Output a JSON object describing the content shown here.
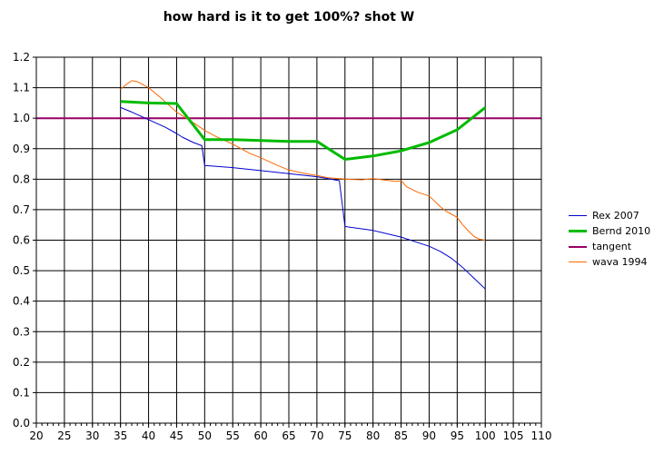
{
  "chart_data": {
    "type": "line",
    "title": "how hard is it to get 100%? shot W",
    "xlabel": "",
    "ylabel": "",
    "xlim": [
      20,
      110
    ],
    "ylim": [
      0.0,
      1.2
    ],
    "x_ticks": [
      "20",
      "25",
      "30",
      "35",
      "40",
      "45",
      "50",
      "55",
      "60",
      "65",
      "70",
      "75",
      "80",
      "85",
      "90",
      "95",
      "100",
      "105",
      "110"
    ],
    "y_ticks": [
      "0.0",
      "0.1",
      "0.2",
      "0.3",
      "0.4",
      "0.5",
      "0.6",
      "0.7",
      "0.8",
      "0.9",
      "1.0",
      "1.1",
      "1.2"
    ],
    "grid": true,
    "legend_position": "right",
    "series": [
      {
        "name": "Rex 2007",
        "color": "#0000cc",
        "width": 1,
        "points": [
          [
            35,
            1.035
          ],
          [
            37,
            1.02
          ],
          [
            40,
            0.995
          ],
          [
            43,
            0.97
          ],
          [
            45,
            0.95
          ],
          [
            46,
            0.938
          ],
          [
            48,
            0.92
          ],
          [
            49.5,
            0.91
          ],
          [
            50,
            0.845
          ],
          [
            55,
            0.838
          ],
          [
            60,
            0.828
          ],
          [
            65,
            0.818
          ],
          [
            70,
            0.808
          ],
          [
            72,
            0.802
          ],
          [
            74,
            0.795
          ],
          [
            75,
            0.645
          ],
          [
            80,
            0.632
          ],
          [
            85,
            0.61
          ],
          [
            90,
            0.58
          ],
          [
            92,
            0.563
          ],
          [
            94,
            0.54
          ],
          [
            96,
            0.51
          ],
          [
            98,
            0.475
          ],
          [
            100,
            0.44
          ]
        ]
      },
      {
        "name": "Bernd 2010",
        "color": "#00bb00",
        "width": 3,
        "points": [
          [
            35,
            1.055
          ],
          [
            40,
            1.05
          ],
          [
            45,
            1.048
          ],
          [
            50,
            0.93
          ],
          [
            55,
            0.93
          ],
          [
            60,
            0.927
          ],
          [
            65,
            0.924
          ],
          [
            70,
            0.924
          ],
          [
            75,
            0.865
          ],
          [
            80,
            0.876
          ],
          [
            85,
            0.893
          ],
          [
            90,
            0.92
          ],
          [
            95,
            0.962
          ],
          [
            100,
            1.035
          ]
        ]
      },
      {
        "name": "tangent",
        "color": "#990066",
        "width": 2,
        "points": [
          [
            20,
            1.0
          ],
          [
            110,
            1.0
          ]
        ]
      },
      {
        "name": "wava 1994",
        "color": "#ff6600",
        "width": 1,
        "points": [
          [
            35,
            1.095
          ],
          [
            36,
            1.11
          ],
          [
            37,
            1.123
          ],
          [
            38,
            1.12
          ],
          [
            40,
            1.1
          ],
          [
            42,
            1.07
          ],
          [
            45,
            1.02
          ],
          [
            48,
            0.985
          ],
          [
            50,
            0.96
          ],
          [
            52,
            0.94
          ],
          [
            55,
            0.915
          ],
          [
            58,
            0.885
          ],
          [
            60,
            0.87
          ],
          [
            63,
            0.845
          ],
          [
            65,
            0.83
          ],
          [
            68,
            0.818
          ],
          [
            70,
            0.812
          ],
          [
            72,
            0.805
          ],
          [
            75,
            0.8
          ],
          [
            78,
            0.798
          ],
          [
            80,
            0.802
          ],
          [
            82,
            0.797
          ],
          [
            84,
            0.793
          ],
          [
            85,
            0.795
          ],
          [
            86,
            0.775
          ],
          [
            88,
            0.757
          ],
          [
            90,
            0.745
          ],
          [
            92,
            0.71
          ],
          [
            93,
            0.695
          ],
          [
            94,
            0.685
          ],
          [
            95,
            0.675
          ],
          [
            96,
            0.65
          ],
          [
            97,
            0.63
          ],
          [
            98,
            0.612
          ],
          [
            99,
            0.603
          ],
          [
            100,
            0.6
          ]
        ]
      }
    ]
  }
}
